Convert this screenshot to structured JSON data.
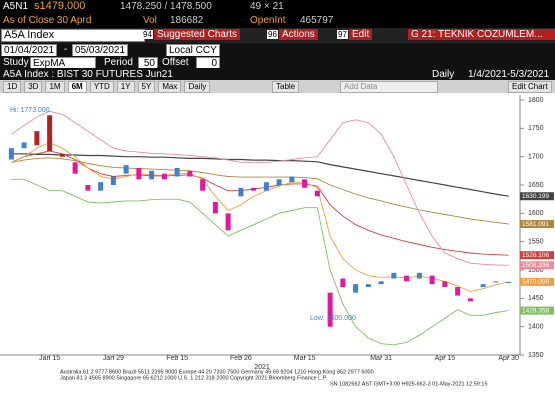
{
  "quote": {
    "ticker": "A5N1",
    "last": "s1479.000",
    "bid_ask": "1478.250 / 1478.500",
    "size": "49 × 21"
  },
  "close_row": {
    "as_of": "As of Close 30 Aprd",
    "vol_label": "Vol",
    "vol": "186682",
    "oi_label": "OpenInt",
    "oi": "465797"
  },
  "command": {
    "security": "A5A Index",
    "buttons": [
      {
        "key": "94",
        "label": "Suggested Charts"
      },
      {
        "key": "96",
        "label": "Actions"
      },
      {
        "key": "97",
        "label": "Edit"
      }
    ],
    "page": "G 21: TEKNIK COZUMLEM..."
  },
  "range": {
    "start": "01/04/2021",
    "sep": "-",
    "end": "05/03/2021",
    "currency": "Local CCY"
  },
  "study": {
    "label": "Study",
    "name": "ExpMA",
    "period_label": "Period",
    "period": "50",
    "offset_label": "Offset",
    "offset": "0"
  },
  "info": {
    "description": "A5A Index : BIST 30 FUTURES  Jun21",
    "frequency": "Daily",
    "span": "1/4/2021-5/3/2021"
  },
  "toolbar": {
    "periods": [
      "1D",
      "3D",
      "1M",
      "6M",
      "YTD",
      "1Y",
      "5Y",
      "Max"
    ],
    "interval": "Daily",
    "table": "Table",
    "add_data": "Add Data",
    "edit_chart": "Edit Chart"
  },
  "chart_data": {
    "type": "candlestick",
    "categories": [
      null,
      null,
      null,
      "Jan 15",
      null,
      null,
      null,
      null,
      "Jan 29",
      null,
      null,
      null,
      null,
      "Feb 15",
      null,
      null,
      null,
      null,
      "Feb 26",
      null,
      null,
      null,
      null,
      "Mar 15",
      null,
      null,
      null,
      null,
      null,
      "Mar 31",
      null,
      null,
      null,
      null,
      "Apr 15",
      null,
      null,
      null,
      null,
      "Apr 30"
    ],
    "year": "2021",
    "open": [
      1695,
      1715,
      1745,
      1773,
      1705,
      1690,
      1650,
      1640,
      1650,
      1670,
      1680,
      1660,
      1670,
      1665,
      1675,
      1660,
      1620,
      1600,
      1630,
      1645,
      1640,
      1650,
      1655,
      1660,
      1640,
      1460,
      1485,
      1460,
      1470,
      1475,
      1485,
      1490,
      1485,
      1490,
      1480,
      1470,
      1450,
      1470,
      1478,
      1478
    ],
    "close": [
      1715,
      1725,
      1720,
      1710,
      1700,
      1670,
      1640,
      1655,
      1665,
      1685,
      1660,
      1675,
      1660,
      1680,
      1665,
      1640,
      1600,
      1570,
      1645,
      1640,
      1655,
      1660,
      1665,
      1645,
      1630,
      1400,
      1470,
      1475,
      1475,
      1480,
      1495,
      1480,
      1495,
      1475,
      1470,
      1455,
      1445,
      1475,
      1480,
      1479
    ],
    "up_color": "#3f7fd0",
    "down_color": "#e0189a",
    "series": [
      {
        "color": "#444444",
        "label": "1630.199",
        "values": [
          1705,
          1705,
          1704,
          1704,
          1703,
          1703,
          1702,
          1702,
          1701,
          1700,
          1700,
          1699,
          1699,
          1698,
          1697,
          1697,
          1696,
          1695,
          1695,
          1694,
          1694,
          1693,
          1693,
          1692,
          1691,
          1686,
          1682,
          1678,
          1674,
          1670,
          1666,
          1662,
          1658,
          1654,
          1650,
          1646,
          1642,
          1638,
          1634,
          1630.199
        ]
      },
      {
        "color": "#b0873a",
        "label": "1581.091",
        "values": [
          1690,
          1694,
          1697,
          1698,
          1696,
          1693,
          1688,
          1684,
          1681,
          1680,
          1679,
          1678,
          1677,
          1676,
          1675,
          1672,
          1668,
          1665,
          1664,
          1664,
          1664,
          1664,
          1664,
          1663,
          1661,
          1650,
          1642,
          1634,
          1627,
          1622,
          1616,
          1611,
          1606,
          1602,
          1598,
          1594,
          1590,
          1587,
          1584,
          1581.091
        ]
      },
      {
        "color": "#d04040",
        "label": "1526.106",
        "values": [
          1690,
          1700,
          1705,
          1710,
          1705,
          1695,
          1680,
          1670,
          1665,
          1667,
          1668,
          1666,
          1666,
          1667,
          1668,
          1662,
          1650,
          1640,
          1640,
          1643,
          1646,
          1650,
          1652,
          1652,
          1648,
          1615,
          1595,
          1580,
          1570,
          1562,
          1556,
          1550,
          1545,
          1540,
          1536,
          1533,
          1530,
          1528,
          1527,
          1526.106
        ]
      },
      {
        "color": "#f08a9a",
        "label": "1508.336",
        "values": [
          1740,
          1755,
          1770,
          1780,
          1775,
          1760,
          1745,
          1730,
          1715,
          1710,
          1708,
          1706,
          1705,
          1704,
          1702,
          1700,
          1698,
          1694,
          1690,
          1690,
          1690,
          1692,
          1695,
          1698,
          1700,
          1730,
          1760,
          1765,
          1760,
          1740,
          1700,
          1650,
          1600,
          1560,
          1530,
          1520,
          1512,
          1510,
          1509,
          1508.336
        ]
      },
      {
        "color": "#f0a040",
        "label": "1479.000",
        "values": [
          1690,
          1700,
          1715,
          1725,
          1715,
          1700,
          1680,
          1665,
          1660,
          1665,
          1670,
          1668,
          1667,
          1670,
          1670,
          1660,
          1630,
          1605,
          1615,
          1630,
          1640,
          1648,
          1655,
          1655,
          1645,
          1560,
          1520,
          1500,
          1490,
          1487,
          1488,
          1486,
          1489,
          1485,
          1480,
          1472,
          1462,
          1467,
          1474,
          1479
        ]
      },
      {
        "color": "#7cc060",
        "label": "1428.358",
        "values": [
          1660,
          1660,
          1650,
          1640,
          1640,
          1630,
          1620,
          1618,
          1620,
          1622,
          1622,
          1624,
          1625,
          1625,
          1620,
          1600,
          1580,
          1560,
          1570,
          1580,
          1590,
          1600,
          1605,
          1610,
          1610,
          1500,
          1440,
          1400,
          1380,
          1370,
          1368,
          1372,
          1385,
          1400,
          1415,
          1430,
          1420,
          1420,
          1425,
          1428.358
        ]
      }
    ],
    "annotations": [
      "Hi: 1773.000",
      "Low: 1400.000"
    ],
    "ylim": [
      1350,
      1800
    ],
    "yticks": [
      1350,
      1400,
      1450,
      1500,
      1550,
      1600,
      1650,
      1700,
      1750,
      1800
    ]
  },
  "footer": [
    "Australia 61 2 9777 8600 Brazil 5511 2395 9000 Europe 44 20 7330 7500 Germany 49 69 9204 1210 Hong Kong 852 2977 6000",
    "Japan 81 3 4565 8900      Singapore 65 6212 1000      U.S. 1 212 318 2000      Copyright 2021 Bloomberg Finance L.P.",
    "SN 1082662 AST  GMT+3:00 H925-662-3 01-May-2021 12:59:15"
  ]
}
